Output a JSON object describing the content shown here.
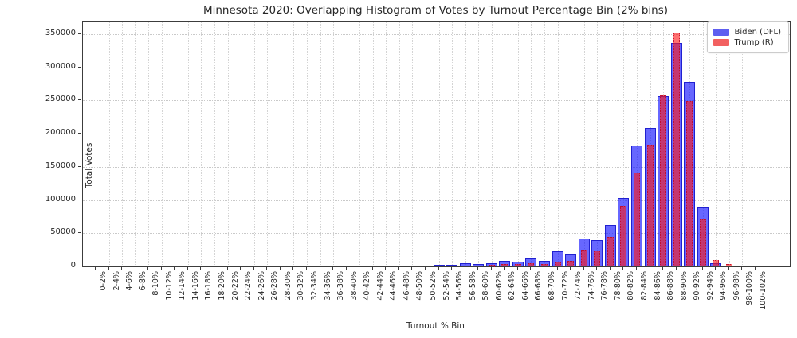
{
  "title": "Minnesota 2020: Overlapping Histogram of Votes by Turnout Percentage Bin (2% bins)",
  "xlabel": "Turnout % Bin",
  "ylabel": "Total Votes",
  "legend": {
    "items": [
      {
        "label": "Biden (DFL)",
        "color": "#5e5ef0"
      },
      {
        "label": "Trump (R)",
        "color": "#f26060"
      }
    ]
  },
  "yticks": [
    0,
    50000,
    100000,
    150000,
    200000,
    250000,
    300000,
    350000
  ],
  "chart_data": {
    "type": "bar",
    "title": "Minnesota 2020: Overlapping Histogram of Votes by Turnout Percentage Bin (2% bins)",
    "xlabel": "Turnout % Bin",
    "ylabel": "Total Votes",
    "ylim": [
      0,
      368000
    ],
    "grid": true,
    "legend_position": "upper right",
    "overlap_mode": "overlapping semi-transparent bars",
    "categories": [
      "0-2%",
      "2-4%",
      "4-6%",
      "6-8%",
      "8-10%",
      "10-12%",
      "12-14%",
      "14-16%",
      "16-18%",
      "18-20%",
      "20-22%",
      "22-24%",
      "24-26%",
      "26-28%",
      "28-30%",
      "30-32%",
      "32-34%",
      "34-36%",
      "36-38%",
      "38-40%",
      "40-42%",
      "42-44%",
      "44-46%",
      "46-48%",
      "48-50%",
      "50-52%",
      "52-54%",
      "54-56%",
      "56-58%",
      "58-60%",
      "60-62%",
      "62-64%",
      "64-66%",
      "66-68%",
      "68-70%",
      "70-72%",
      "72-74%",
      "74-76%",
      "76-78%",
      "78-80%",
      "80-82%",
      "82-84%",
      "84-86%",
      "86-88%",
      "88-90%",
      "90-92%",
      "92-94%",
      "94-96%",
      "96-98%",
      "98-100%",
      "100-102%"
    ],
    "series": [
      {
        "name": "Biden (DFL)",
        "color": "rgba(10,10,255,0.62)",
        "values": [
          0,
          0,
          0,
          0,
          0,
          0,
          0,
          0,
          0,
          0,
          0,
          0,
          0,
          0,
          0,
          0,
          0,
          0,
          0,
          0,
          0,
          0,
          0,
          0,
          800,
          1500,
          2200,
          2000,
          4300,
          3400,
          4800,
          8400,
          7300,
          12000,
          8500,
          22500,
          18000,
          41500,
          39000,
          62500,
          103000,
          182000,
          208000,
          256000,
          337000,
          278000,
          90000,
          5000,
          1500,
          300,
          100
        ]
      },
      {
        "name": "Trump (R)",
        "color": "rgba(255,25,25,0.62)",
        "values": [
          0,
          0,
          0,
          0,
          0,
          0,
          0,
          0,
          0,
          0,
          0,
          0,
          0,
          0,
          0,
          0,
          0,
          0,
          0,
          0,
          0,
          0,
          0,
          0,
          300,
          500,
          800,
          900,
          1600,
          1400,
          2000,
          3200,
          3300,
          4300,
          3500,
          6800,
          8000,
          25000,
          24000,
          44000,
          91000,
          142000,
          183000,
          257500,
          352000,
          249000,
          72000,
          10000,
          3500,
          500,
          150
        ]
      }
    ]
  }
}
